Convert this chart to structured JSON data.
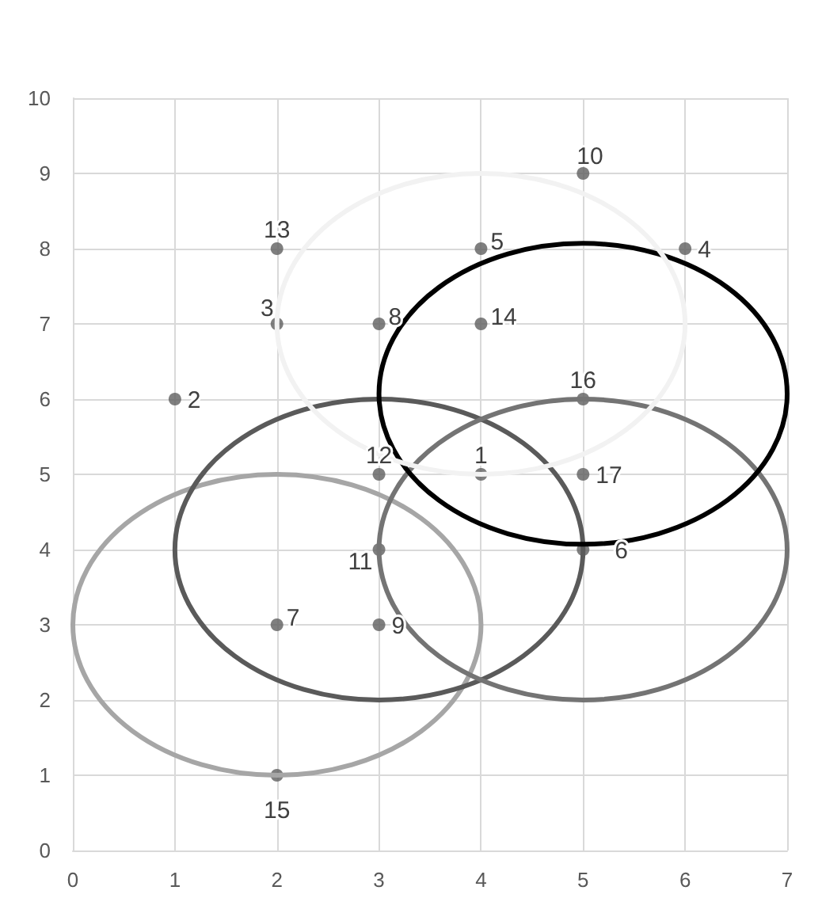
{
  "chart_data": {
    "type": "scatter",
    "xlim": [
      0,
      7
    ],
    "xticks": [
      0,
      1,
      2,
      3,
      4,
      5,
      6,
      7
    ],
    "ylim": [
      0,
      10
    ],
    "yticks": [
      0,
      1,
      2,
      3,
      4,
      5,
      6,
      7,
      8,
      9,
      10
    ],
    "grid": true,
    "marker": "circle",
    "color": "#5f5f5f",
    "x": [
      4,
      1,
      2,
      6,
      4,
      5,
      2,
      3,
      3,
      5,
      3,
      3,
      2,
      4,
      2,
      5,
      5
    ],
    "values": [
      5,
      6,
      7,
      8,
      8,
      4,
      3,
      7,
      3,
      9,
      4,
      5,
      8,
      7,
      1,
      6,
      5
    ],
    "annotations": [
      {
        "text": "1",
        "x": 4,
        "y": 5
      },
      {
        "text": "2",
        "x": 1,
        "y": 6
      },
      {
        "text": "3",
        "x": 2,
        "y": 7
      },
      {
        "text": "4",
        "x": 6,
        "y": 8
      },
      {
        "text": "5",
        "x": 4,
        "y": 8
      },
      {
        "text": "6",
        "x": 5,
        "y": 4
      },
      {
        "text": "7",
        "x": 2,
        "y": 3
      },
      {
        "text": "8",
        "x": 3,
        "y": 7
      },
      {
        "text": "9",
        "x": 3,
        "y": 3
      },
      {
        "text": "10",
        "x": 5,
        "y": 9
      },
      {
        "text": "11",
        "x": 3,
        "y": 4
      },
      {
        "text": "12",
        "x": 3,
        "y": 5
      },
      {
        "text": "13",
        "x": 2,
        "y": 8
      },
      {
        "text": "14",
        "x": 4,
        "y": 7
      },
      {
        "text": "15",
        "x": 2,
        "y": 1
      },
      {
        "text": "16",
        "x": 5,
        "y": 6
      },
      {
        "text": "17",
        "x": 5,
        "y": 5
      }
    ]
  }
}
